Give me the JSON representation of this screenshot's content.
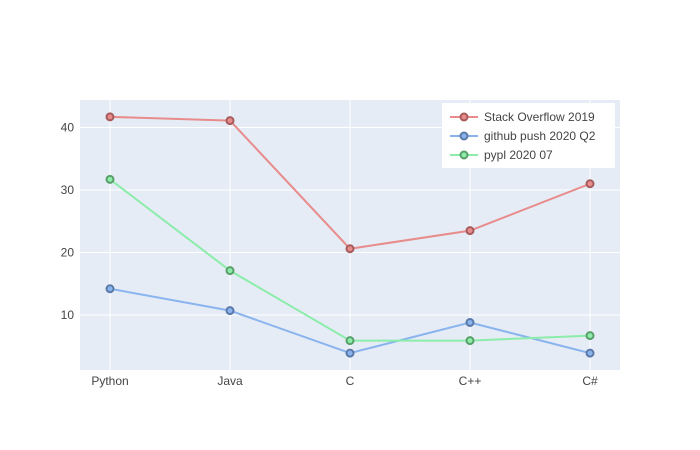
{
  "chart_data": {
    "type": "line",
    "categories": [
      "Python",
      "Java",
      "C",
      "C++",
      "C#"
    ],
    "series": [
      {
        "name": "Stack Overflow 2019",
        "values": [
          41.7,
          41.1,
          20.6,
          23.5,
          31.0
        ],
        "color": "#e88b8b",
        "marker": "#a65c5c"
      },
      {
        "name": "github push 2020 Q2",
        "values": [
          14.2,
          10.7,
          3.9,
          8.8,
          3.9
        ],
        "color": "#8ab4ee",
        "marker": "#5b79a8"
      },
      {
        "name": "pypl 2020 07",
        "values": [
          31.7,
          17.1,
          5.9,
          5.9,
          6.7
        ],
        "color": "#8cedaa",
        "marker": "#5a9e6a"
      }
    ],
    "yticks": [
      10,
      20,
      30,
      40
    ],
    "ylim": [
      1.2,
      44.4
    ],
    "grid": true,
    "legend_position": "top-right",
    "background": "#e5ecf6"
  }
}
